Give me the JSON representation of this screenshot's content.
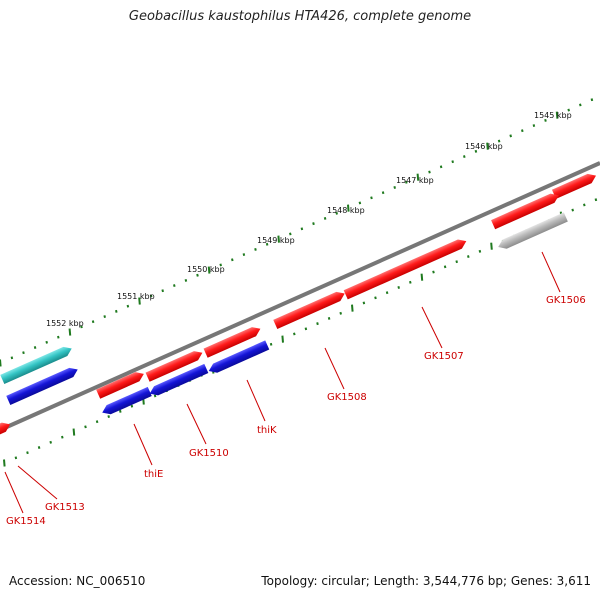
{
  "title": "Geobacillus kaustophilus HTA426, complete genome",
  "footer": {
    "accession_prefix": "Accession:",
    "accession": "NC_006510",
    "topology_text": "Topology: circular; Length: 3,544,776 bp; Genes: 3,611"
  },
  "colors": {
    "gene_red": "#ff1a1a",
    "gene_blue": "#1414d6",
    "gene_cyan": "#33c4c4",
    "gene_gray": "#b8b8b8",
    "backbone": "#777777",
    "tick": "#1f7a1f",
    "label": "#cc0000"
  },
  "scale_ticks": [
    "1545 kbp",
    "1546 kbp",
    "1547 kbp",
    "1548 kbp",
    "1549 kbp",
    "1550 kbp",
    "1551 kbp",
    "1552 kbp"
  ],
  "genes": [
    {
      "label": "GK1506",
      "color": "gray"
    },
    {
      "label": "GK1507",
      "color": "red"
    },
    {
      "label": "GK1508",
      "color": "red"
    },
    {
      "label": "thiK",
      "color": "blue"
    },
    {
      "label": "GK1510",
      "color": "blue"
    },
    {
      "label": "thiE",
      "color": "blue"
    },
    {
      "label": "GK1513",
      "color": "red"
    },
    {
      "label": "GK1514",
      "color": "red"
    }
  ]
}
